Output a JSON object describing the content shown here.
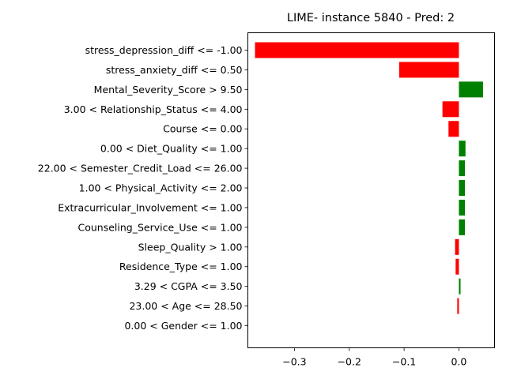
{
  "chart_data": {
    "type": "bar",
    "orientation": "horizontal",
    "title": "LIME- instance 5840 - Pred: 2",
    "xlabel": "",
    "ylabel": "",
    "xlim": [
      -0.385,
      0.065
    ],
    "xticks": [
      -0.3,
      -0.2,
      -0.1,
      0.0
    ],
    "xtick_labels": [
      "−0.3",
      "−0.2",
      "−0.1",
      "0.0"
    ],
    "grid": false,
    "colors": {
      "positive": "#008000",
      "negative": "#ff0000"
    },
    "categories": [
      "stress_depression_diff <= -1.00",
      "stress_anxiety_diff <= 0.50",
      "Mental_Severity_Score > 9.50",
      "3.00 < Relationship_Status <= 4.00",
      "Course <= 0.00",
      "0.00 < Diet_Quality <= 1.00",
      "22.00 < Semester_Credit_Load <= 26.00",
      "1.00 < Physical_Activity <= 2.00",
      "Extracurricular_Involvement <= 1.00",
      "Counseling_Service_Use <= 1.00",
      "Sleep_Quality > 1.00",
      "Residence_Type <= 1.00",
      "3.29 < CGPA <= 3.50",
      "23.00 < Age <= 28.50",
      "0.00 < Gender <= 1.00"
    ],
    "values": [
      -0.372,
      -0.109,
      0.044,
      -0.03,
      -0.019,
      0.012,
      0.011,
      0.011,
      0.011,
      0.011,
      -0.007,
      -0.006,
      0.003,
      -0.003,
      0.0
    ]
  }
}
